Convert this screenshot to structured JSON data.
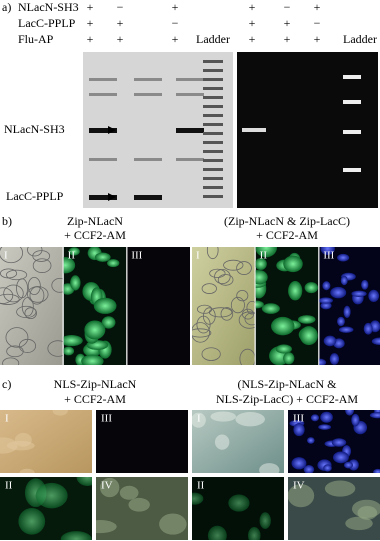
{
  "panel_a": {
    "label": "a)",
    "row_labels": [
      "NLacN-SH3",
      "LacC-PPLP",
      "Flu-AP"
    ],
    "left_gel": {
      "signs": [
        [
          "+",
          "−",
          "+"
        ],
        [
          "+",
          "+",
          "−"
        ],
        [
          "+",
          "+",
          "+"
        ]
      ],
      "ladder": "Ladder",
      "band_labels": [
        "NLacN-SH3",
        "LacC-PPLP"
      ]
    },
    "right_gel": {
      "signs": [
        [
          "+",
          "−",
          "+"
        ],
        [
          "+",
          "+",
          "−"
        ],
        [
          "+",
          "+",
          "+"
        ]
      ],
      "ladder": "Ladder"
    }
  },
  "panel_b": {
    "label": "b)",
    "groups": [
      {
        "title": [
          "Zip-NLacN",
          "+ CCF2-AM"
        ],
        "images": [
          "I",
          "II",
          "III"
        ]
      },
      {
        "title": [
          "(Zip-NLacN & Zip-LacC)",
          "+ CCF2-AM"
        ],
        "images": [
          "I",
          "II",
          "III"
        ]
      }
    ]
  },
  "panel_c": {
    "label": "c)",
    "groups": [
      {
        "title": [
          "NLS-Zip-NLacN",
          "+ CCF2-AM"
        ],
        "images": [
          "I",
          "III",
          "II",
          "IV"
        ]
      },
      {
        "title": [
          "(NLS-Zip-NLacN &",
          "NLS-Zip-LacC) + CCF2-AM"
        ],
        "images": [
          "I",
          "III",
          "II",
          "IV"
        ]
      }
    ]
  }
}
